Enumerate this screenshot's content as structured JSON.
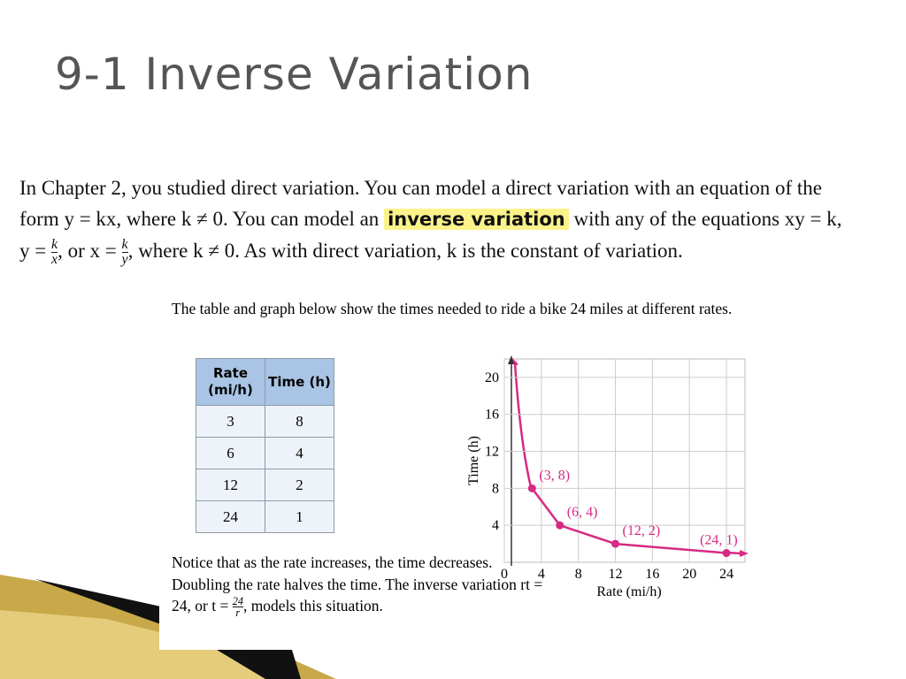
{
  "title": "9-1 Inverse Variation",
  "intro": {
    "text1": "In Chapter 2, you studied direct variation. You can model a direct variation with an equation of the form y = kx, where k ≠ 0. You can model an",
    "highlight": "inverse variation",
    "text2": "with any of the equations xy = k, y = ",
    "frac1": {
      "num": "k",
      "den": "x"
    },
    "text3": ", or x = ",
    "frac2": {
      "num": "k",
      "den": "y"
    },
    "text4": ", where k ≠ 0. As with direct variation, k is the constant of variation."
  },
  "caption": "The table and graph below show the times needed to ride a bike 24 miles at different rates.",
  "table": {
    "header": [
      "Rate (mi/h)",
      "Time (h)"
    ],
    "rows": [
      [
        "3",
        "8"
      ],
      [
        "6",
        "4"
      ],
      [
        "12",
        "2"
      ],
      [
        "24",
        "1"
      ]
    ]
  },
  "notice": {
    "text1": "Notice that as the rate increases, the time decreases. Doubling the rate halves the time. The inverse variation rt = 24, or t = ",
    "frac": {
      "num": "24",
      "den": "r"
    },
    "text2": ", models this situation."
  },
  "chart_data": {
    "type": "line",
    "x_label": "Rate (mi/h)",
    "y_label": "Time (h)",
    "x": [
      3,
      6,
      12,
      24
    ],
    "values": [
      8,
      4,
      2,
      1
    ],
    "value_labels": [
      "(3, 8)",
      "(6, 4)",
      "(12, 2)",
      "(24, 1)"
    ],
    "color": "#d62a84",
    "xlim": [
      0,
      26
    ],
    "ylim": [
      0,
      22
    ],
    "xticks": [
      0,
      4,
      8,
      12,
      16,
      20,
      24
    ],
    "yticks": [
      4,
      8,
      12,
      16,
      20
    ],
    "grid": true
  }
}
